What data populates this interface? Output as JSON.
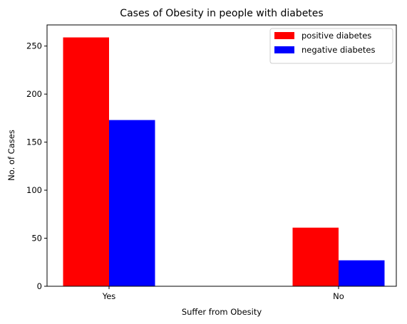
{
  "chart_data": {
    "type": "bar",
    "title": "Cases of Obesity in people with diabetes",
    "xlabel": "Suffer from Obesity",
    "ylabel": "No. of Cases",
    "categories": [
      "Yes",
      "No"
    ],
    "series": [
      {
        "name": "positive diabetes",
        "values": [
          259,
          61
        ],
        "color": "#ff0000"
      },
      {
        "name": "negative diabetes",
        "values": [
          173,
          27
        ],
        "color": "#0000ff"
      }
    ],
    "ylim": [
      0,
      272
    ],
    "yticks": [
      0,
      50,
      100,
      150,
      200,
      250
    ],
    "grid": false,
    "legend_position": "top-right"
  }
}
